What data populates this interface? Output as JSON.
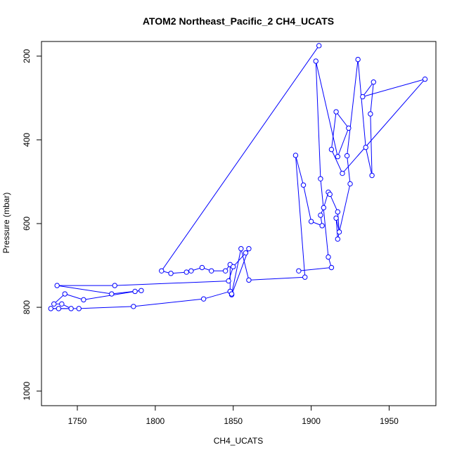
{
  "chart_data": {
    "type": "line",
    "title": "ATOM2 Northeast_Pacific_2 CH4_UCATS",
    "xlabel": "CH4_UCATS",
    "ylabel": "Pressure (mbar)",
    "xlim": [
      1727,
      1980
    ],
    "ylim": [
      1035,
      165
    ],
    "y_reversed": true,
    "x_ticks": [
      1750,
      1800,
      1850,
      1900,
      1950
    ],
    "y_ticks": [
      200,
      400,
      600,
      800,
      1000
    ],
    "x_tick_labels": [
      "1750",
      "1800",
      "1850",
      "1900",
      "1950"
    ],
    "y_tick_labels": [
      "200",
      "400",
      "600",
      "800",
      "1000"
    ],
    "series_color": "#0000ff",
    "marker": "open-circle",
    "grid": false,
    "series": [
      {
        "x": [
          1905,
          1804,
          1810,
          1820,
          1823,
          1830,
          1836,
          1845,
          1848,
          1848,
          1849,
          1860,
          1858,
          1850,
          1847,
          1774,
          1737,
          1772,
          1791,
          1787,
          1754,
          1742,
          1735,
          1740,
          1746,
          1733,
          1738,
          1751,
          1786,
          1831,
          1848,
          1849,
          1855,
          1860,
          1896,
          1890,
          1895,
          1900,
          1907,
          1906,
          1908,
          1911,
          1912,
          1917,
          1918,
          1916,
          1917,
          1925,
          1923,
          1930,
          1935,
          1939,
          1938,
          1940,
          1933,
          1973,
          1920,
          1913,
          1916,
          1924,
          1917,
          1903,
          1906,
          1911,
          1913,
          1892
        ],
        "y": [
          175,
          713,
          719,
          716,
          713,
          705,
          713,
          713,
          698,
          762,
          770,
          660,
          670,
          703,
          737,
          748,
          748,
          768,
          760,
          762,
          782,
          768,
          792,
          792,
          803,
          803,
          803,
          803,
          798,
          780,
          762,
          768,
          660,
          735,
          728,
          437,
          508,
          595,
          605,
          580,
          562,
          525,
          530,
          572,
          620,
          587,
          637,
          505,
          438,
          208,
          418,
          485,
          338,
          262,
          297,
          255,
          480,
          423,
          333,
          372,
          440,
          212,
          493,
          680,
          705,
          713
        ]
      }
    ]
  }
}
